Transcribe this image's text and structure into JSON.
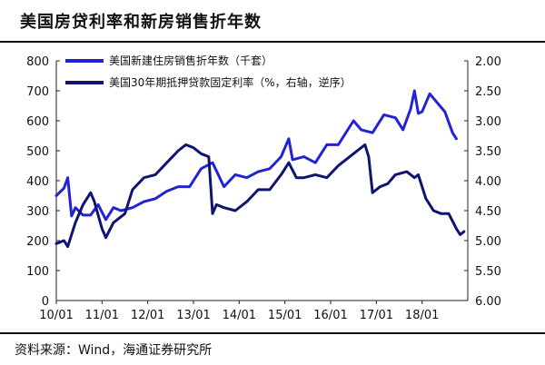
{
  "header": {
    "title": "美国房贷利率和新房销售折年数"
  },
  "footer": {
    "source": "资料来源：Wind，海通证券研究所"
  },
  "colors": {
    "series1": "#2323d6",
    "series2": "#0f1470",
    "axis": "#222222"
  },
  "chart_data": {
    "type": "line",
    "x_tick_labels": [
      "10/01",
      "11/01",
      "12/01",
      "13/01",
      "14/01",
      "15/01",
      "16/01",
      "17/01",
      "18/01"
    ],
    "x_range": [
      "2010-01",
      "2018-12"
    ],
    "y_left": {
      "ylim": [
        0,
        800
      ],
      "ticks": [
        0,
        100,
        200,
        300,
        400,
        500,
        600,
        700,
        800
      ]
    },
    "y_right": {
      "ylim": [
        2.0,
        6.0
      ],
      "inverted": true,
      "ticks": [
        "2.00",
        "2.50",
        "3.00",
        "3.50",
        "4.00",
        "4.50",
        "5.00",
        "5.50",
        "6.00"
      ]
    },
    "legend_position": "top-left",
    "series": [
      {
        "name": "美国新建住房销售折年数（千套）",
        "axis": "left",
        "points": [
          [
            "2010-01",
            350
          ],
          [
            "2010-03",
            375
          ],
          [
            "2010-04",
            410
          ],
          [
            "2010-05",
            282
          ],
          [
            "2010-06",
            310
          ],
          [
            "2010-08",
            285
          ],
          [
            "2010-10",
            285
          ],
          [
            "2010-12",
            320
          ],
          [
            "2011-02",
            270
          ],
          [
            "2011-04",
            310
          ],
          [
            "2011-06",
            300
          ],
          [
            "2011-09",
            310
          ],
          [
            "2011-12",
            330
          ],
          [
            "2012-03",
            340
          ],
          [
            "2012-06",
            365
          ],
          [
            "2012-09",
            380
          ],
          [
            "2012-12",
            380
          ],
          [
            "2013-03",
            440
          ],
          [
            "2013-06",
            460
          ],
          [
            "2013-09",
            380
          ],
          [
            "2013-12",
            420
          ],
          [
            "2014-03",
            410
          ],
          [
            "2014-06",
            430
          ],
          [
            "2014-09",
            440
          ],
          [
            "2014-12",
            480
          ],
          [
            "2015-02",
            540
          ],
          [
            "2015-03",
            470
          ],
          [
            "2015-06",
            480
          ],
          [
            "2015-09",
            460
          ],
          [
            "2015-12",
            520
          ],
          [
            "2016-03",
            520
          ],
          [
            "2016-07",
            600
          ],
          [
            "2016-09",
            570
          ],
          [
            "2016-12",
            560
          ],
          [
            "2017-03",
            620
          ],
          [
            "2017-06",
            610
          ],
          [
            "2017-08",
            570
          ],
          [
            "2017-10",
            640
          ],
          [
            "2017-11",
            700
          ],
          [
            "2017-12",
            625
          ],
          [
            "2018-01",
            630
          ],
          [
            "2018-03",
            690
          ],
          [
            "2018-05",
            660
          ],
          [
            "2018-07",
            630
          ],
          [
            "2018-09",
            560
          ],
          [
            "2018-10",
            540
          ]
        ]
      },
      {
        "name": "美国30年期抵押贷款固定利率（%，右轴，逆序）",
        "axis": "right",
        "points": [
          [
            "2010-01",
            5.05
          ],
          [
            "2010-03",
            5.0
          ],
          [
            "2010-04",
            5.1
          ],
          [
            "2010-06",
            4.7
          ],
          [
            "2010-08",
            4.4
          ],
          [
            "2010-10",
            4.2
          ],
          [
            "2010-11",
            4.35
          ],
          [
            "2011-01",
            4.8
          ],
          [
            "2011-02",
            4.95
          ],
          [
            "2011-04",
            4.7
          ],
          [
            "2011-07",
            4.55
          ],
          [
            "2011-09",
            4.15
          ],
          [
            "2011-12",
            3.95
          ],
          [
            "2012-03",
            3.9
          ],
          [
            "2012-06",
            3.7
          ],
          [
            "2012-09",
            3.5
          ],
          [
            "2012-11",
            3.4
          ],
          [
            "2013-01",
            3.45
          ],
          [
            "2013-03",
            3.55
          ],
          [
            "2013-05",
            3.6
          ],
          [
            "2013-06",
            4.55
          ],
          [
            "2013-07",
            4.4
          ],
          [
            "2013-09",
            4.45
          ],
          [
            "2013-12",
            4.5
          ],
          [
            "2014-03",
            4.35
          ],
          [
            "2014-06",
            4.15
          ],
          [
            "2014-09",
            4.15
          ],
          [
            "2014-12",
            3.9
          ],
          [
            "2015-02",
            3.7
          ],
          [
            "2015-04",
            3.95
          ],
          [
            "2015-06",
            3.95
          ],
          [
            "2015-09",
            3.9
          ],
          [
            "2015-12",
            3.95
          ],
          [
            "2016-03",
            3.75
          ],
          [
            "2016-06",
            3.6
          ],
          [
            "2016-09",
            3.45
          ],
          [
            "2016-10",
            3.4
          ],
          [
            "2016-11",
            3.6
          ],
          [
            "2016-12",
            4.2
          ],
          [
            "2017-02",
            4.1
          ],
          [
            "2017-04",
            4.05
          ],
          [
            "2017-06",
            3.9
          ],
          [
            "2017-09",
            3.85
          ],
          [
            "2017-11",
            3.95
          ],
          [
            "2017-12",
            3.9
          ],
          [
            "2018-02",
            4.3
          ],
          [
            "2018-04",
            4.5
          ],
          [
            "2018-06",
            4.55
          ],
          [
            "2018-08",
            4.55
          ],
          [
            "2018-10",
            4.8
          ],
          [
            "2018-11",
            4.9
          ],
          [
            "2018-12",
            4.85
          ]
        ]
      }
    ]
  }
}
